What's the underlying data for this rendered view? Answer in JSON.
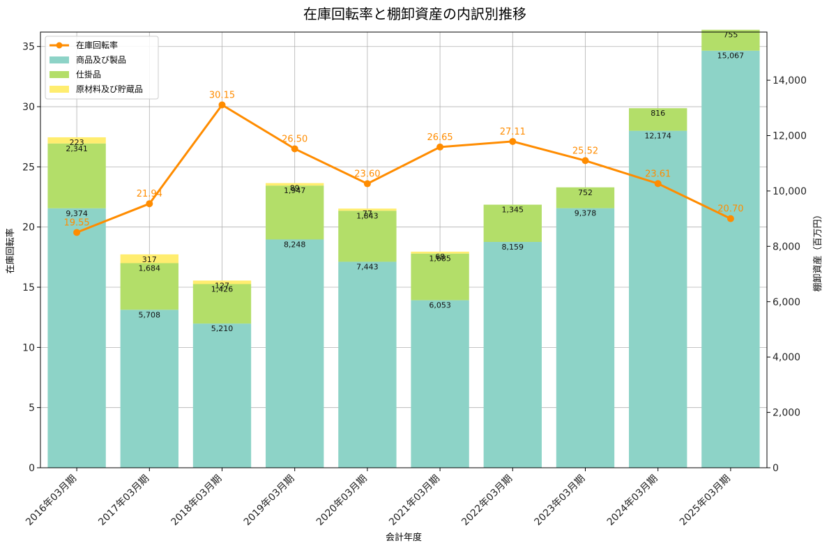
{
  "chart_data": {
    "type": "bar",
    "title": "在庫回転率と棚卸資産の内訳別推移",
    "xlabel": "会計年度",
    "ylabel_left": "在庫回転率",
    "ylabel_right": "棚卸資産（百万円）",
    "categories": [
      "2016年03月期",
      "2017年03月期",
      "2018年03月期",
      "2019年03月期",
      "2020年03月期",
      "2021年03月期",
      "2022年03月期",
      "2023年03月期",
      "2024年03月期",
      "2025年03月期"
    ],
    "ylim_left": [
      0,
      36.2
    ],
    "ylim_right": [
      0,
      15740
    ],
    "yticks_left": [
      0,
      5,
      10,
      15,
      20,
      25,
      30,
      35
    ],
    "yticks_right": [
      0,
      2000,
      4000,
      6000,
      8000,
      10000,
      12000,
      14000
    ],
    "yticks_right_labels": [
      "0",
      "2,000",
      "4,000",
      "6,000",
      "8,000",
      "10,000",
      "12,000",
      "14,000"
    ],
    "grid": true,
    "legend_position": "top-left",
    "series": [
      {
        "name": "商品及び製品",
        "kind": "bar",
        "axis": "right",
        "color": "#8dd3c7",
        "values": [
          9374,
          5708,
          5210,
          8248,
          7443,
          6053,
          8159,
          9378,
          12174,
          15067
        ],
        "labels": [
          "9,374",
          "5,708",
          "5,210",
          "8,248",
          "7,443",
          "6,053",
          "8,159",
          "9,378",
          "12,174",
          "15,067"
        ]
      },
      {
        "name": "仕掛品",
        "kind": "bar",
        "axis": "right",
        "color": "#b3de69",
        "values": [
          2341,
          1684,
          1426,
          1947,
          1843,
          1685,
          1345,
          752,
          816,
          755
        ],
        "labels": [
          "2,341",
          "1,684",
          "1,426",
          "1,947",
          "1,843",
          "1,685",
          "1,345",
          "752",
          "816",
          "755"
        ]
      },
      {
        "name": "原材料及び貯蔵品",
        "kind": "bar",
        "axis": "right",
        "color": "#ffed6f",
        "values": [
          223,
          317,
          127,
          89,
          77,
          68,
          0,
          0,
          0,
          0
        ],
        "labels": [
          "223",
          "317",
          "127",
          "89",
          "77",
          "68",
          "",
          "",
          "",
          ""
        ]
      },
      {
        "name": "在庫回転率",
        "kind": "line",
        "axis": "left",
        "color": "#ff8c00",
        "values": [
          19.55,
          21.94,
          30.15,
          26.5,
          23.6,
          26.65,
          27.11,
          25.52,
          23.61,
          20.7
        ],
        "labels": [
          "19.55",
          "21.94",
          "30.15",
          "26.50",
          "23.60",
          "26.65",
          "27.11",
          "25.52",
          "23.61",
          "20.70"
        ]
      }
    ]
  }
}
